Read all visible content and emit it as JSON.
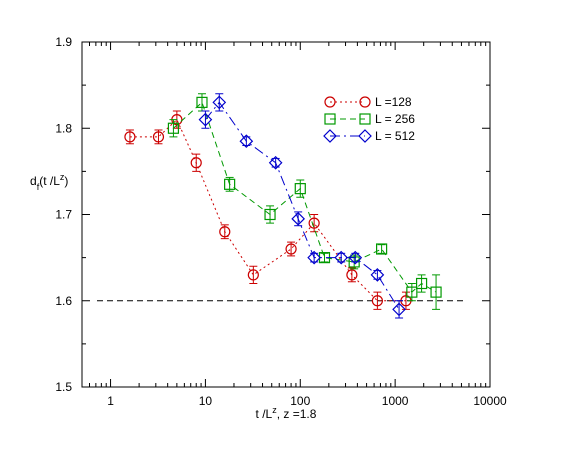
{
  "chart_data": {
    "type": "line",
    "xscale": "log",
    "xlim": [
      0.5,
      10000
    ],
    "ylim": [
      1.5,
      1.9
    ],
    "xticks": [
      "1",
      "10",
      "100",
      "1000",
      "10000"
    ],
    "yticks": [
      "1.5",
      "1.6",
      "1.7",
      "1.8",
      "1.9"
    ],
    "ylabel": "d_f(t /L^z)",
    "xlabel": "t /L^z, z =1.8",
    "grid": false,
    "legend_position": "top-right",
    "reference_line": {
      "y": 1.6,
      "style": "dashed",
      "color": "#000000"
    },
    "series": [
      {
        "name": "L =128",
        "color": "#cc0000",
        "marker": "circle",
        "dash": "dotted",
        "points": [
          {
            "x": 1.6,
            "y": 1.79,
            "err": 0.008
          },
          {
            "x": 3.2,
            "y": 1.79,
            "err": 0.008
          },
          {
            "x": 5.0,
            "y": 1.81,
            "err": 0.01
          },
          {
            "x": 8.0,
            "y": 1.76,
            "err": 0.01
          },
          {
            "x": 16,
            "y": 1.68,
            "err": 0.008
          },
          {
            "x": 32,
            "y": 1.63,
            "err": 0.01
          },
          {
            "x": 80,
            "y": 1.66,
            "err": 0.008
          },
          {
            "x": 140,
            "y": 1.69,
            "err": 0.01
          },
          {
            "x": 350,
            "y": 1.63,
            "err": 0.008
          },
          {
            "x": 650,
            "y": 1.6,
            "err": 0.01
          },
          {
            "x": 1300,
            "y": 1.6,
            "err": 0.01
          }
        ]
      },
      {
        "name": "L = 256",
        "color": "#009900",
        "marker": "square",
        "dash": "dashed",
        "points": [
          {
            "x": 4.6,
            "y": 1.8,
            "err": 0.01
          },
          {
            "x": 9.2,
            "y": 1.83,
            "err": 0.01
          },
          {
            "x": 18,
            "y": 1.735,
            "err": 0.008
          },
          {
            "x": 48,
            "y": 1.7,
            "err": 0.01
          },
          {
            "x": 100,
            "y": 1.73,
            "err": 0.01
          },
          {
            "x": 180,
            "y": 1.65,
            "err": 0.005
          },
          {
            "x": 370,
            "y": 1.645,
            "err": 0.008
          },
          {
            "x": 720,
            "y": 1.66,
            "err": 0.005
          },
          {
            "x": 1500,
            "y": 1.61,
            "err": 0.01
          },
          {
            "x": 1900,
            "y": 1.62,
            "err": 0.01
          },
          {
            "x": 2700,
            "y": 1.61,
            "err": 0.02
          }
        ]
      },
      {
        "name": "L = 512",
        "color": "#0000cc",
        "marker": "diamond",
        "dash": "dashdot",
        "points": [
          {
            "x": 10,
            "y": 1.81,
            "err": 0.01
          },
          {
            "x": 14,
            "y": 1.83,
            "err": 0.01
          },
          {
            "x": 27,
            "y": 1.785,
            "err": 0.005
          },
          {
            "x": 55,
            "y": 1.76,
            "err": 0.005
          },
          {
            "x": 95,
            "y": 1.695,
            "err": 0.008
          },
          {
            "x": 140,
            "y": 1.65,
            "err": 0.005
          },
          {
            "x": 270,
            "y": 1.65,
            "err": 0.005
          },
          {
            "x": 380,
            "y": 1.65,
            "err": 0.005
          },
          {
            "x": 650,
            "y": 1.63,
            "err": 0.005
          },
          {
            "x": 1100,
            "y": 1.59,
            "err": 0.01
          }
        ]
      }
    ]
  }
}
